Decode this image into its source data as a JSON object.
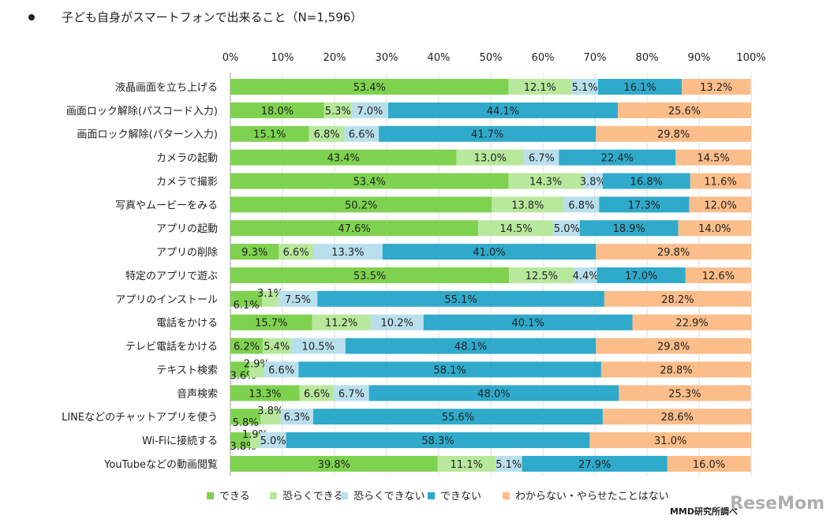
{
  "chart_data": {
    "type": "bar",
    "orientation": "horizontal-stacked-100",
    "title": "子ども自身がスマートフォンで出来ること（N=1,596）",
    "xlim": [
      0,
      100
    ],
    "x_ticks": [
      "0%",
      "10%",
      "20%",
      "30%",
      "40%",
      "50%",
      "60%",
      "70%",
      "80%",
      "90%",
      "100%"
    ],
    "grid": true,
    "legend_position": "bottom",
    "categories": [
      "液晶画面を立ち上げる",
      "画面ロック解除(パスコード入力)",
      "画面ロック解除(パターン入力)",
      "カメラの起動",
      "カメラで撮影",
      "写真やムービーをみる",
      "アプリの起動",
      "アプリの削除",
      "特定のアプリで遊ぶ",
      "アプリのインストール",
      "電話をかける",
      "テレビ電話をかける",
      "テキスト検索",
      "音声検索",
      "LINEなどのチャットアプリを使う",
      "Wi-Fiに接続する",
      "YouTubeなどの動画閲覧"
    ],
    "series": [
      {
        "name": "できる",
        "color": "#7ed24f",
        "values": [
          53.4,
          18.0,
          15.1,
          43.4,
          53.4,
          50.2,
          47.6,
          9.3,
          53.5,
          6.1,
          15.7,
          6.2,
          3.6,
          13.3,
          5.8,
          3.8,
          39.8
        ]
      },
      {
        "name": "恐らくできる",
        "color": "#b8e89c",
        "values": [
          12.1,
          5.3,
          6.8,
          13.0,
          14.3,
          13.8,
          14.5,
          6.6,
          12.5,
          3.1,
          11.2,
          5.4,
          2.9,
          6.6,
          3.8,
          1.9,
          11.1
        ]
      },
      {
        "name": "恐らくできない",
        "color": "#b9dfec",
        "values": [
          5.1,
          7.0,
          6.6,
          6.7,
          3.8,
          6.8,
          5.0,
          13.3,
          4.4,
          7.5,
          10.2,
          10.5,
          6.6,
          6.7,
          6.3,
          5.0,
          5.1
        ]
      },
      {
        "name": "できない",
        "color": "#2faacb",
        "values": [
          16.1,
          44.1,
          41.7,
          22.4,
          16.8,
          17.3,
          18.9,
          41.0,
          17.0,
          55.1,
          40.1,
          48.1,
          58.1,
          48.0,
          55.6,
          58.3,
          27.9
        ]
      },
      {
        "name": "わからない・やらせたことはない",
        "color": "#fbbd8a",
        "values": [
          13.2,
          25.6,
          29.8,
          14.5,
          11.6,
          12.0,
          14.0,
          29.8,
          12.6,
          28.2,
          22.9,
          29.8,
          28.8,
          25.3,
          28.6,
          31.0,
          16.0
        ]
      }
    ]
  },
  "source": "MMD研究所調べ",
  "watermark": "ReseMom"
}
